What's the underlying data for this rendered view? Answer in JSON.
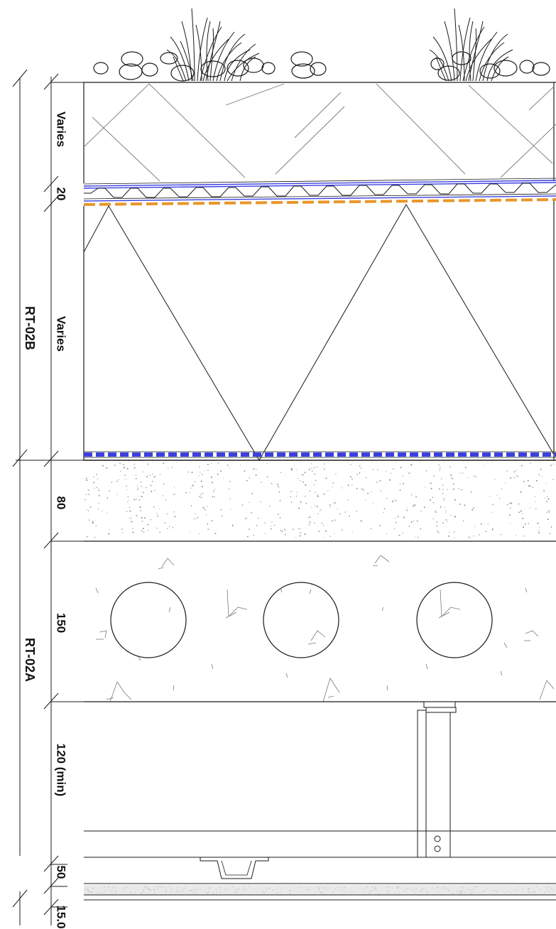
{
  "dimensions": {
    "green_roof_soil": "Varies",
    "drainage_layer": "20",
    "insulation": "Varies",
    "topping_slab": "80",
    "hollowcore_slab": "150",
    "ceiling_void": "120 (min)",
    "ceiling_batten": "50",
    "plasterboard": "15.0"
  },
  "system_labels": {
    "upper": "RT-02B",
    "lower": "RT-02A"
  },
  "colors": {
    "line": "#1a1a1a",
    "membrane_blue": "#3b3fe0",
    "membrane_orange": "#e8962a",
    "hatch": "#7a7a7a"
  }
}
